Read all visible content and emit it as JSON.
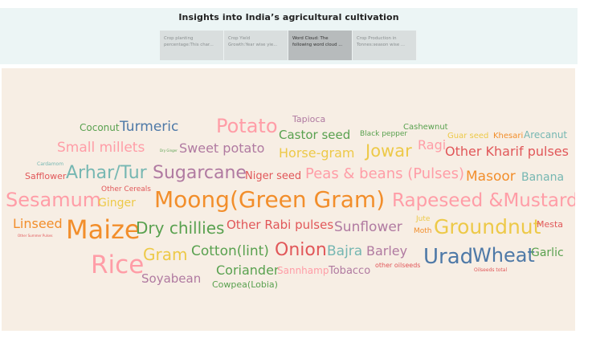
{
  "title": "Insights into India’s agricultural cultivation",
  "tabs": [
    {
      "line1": "Crop planting",
      "line2": "percentage:This char...",
      "active": false
    },
    {
      "line1": "Crop Yield",
      "line2": "Growth:Year wise yie...",
      "active": false
    },
    {
      "line1": "Word Cloud: The",
      "line2": "following word cloud ...",
      "active": true
    },
    {
      "line1": "Crop Production in",
      "line2": "Tonnes:season wise ...",
      "active": false
    }
  ],
  "words": [
    {
      "text": "Tapioca",
      "size": 11,
      "color": "#b07aa1"
    },
    {
      "text": "Coconut",
      "size": 12,
      "color": "#59a14f"
    },
    {
      "text": "Turmeric",
      "size": 17,
      "color": "#4e79a7"
    },
    {
      "text": "Potato",
      "size": 24,
      "color": "#ff9da7"
    },
    {
      "text": "Castor seed",
      "size": 15,
      "color": "#59a14f"
    },
    {
      "text": "Black pepper",
      "size": 9,
      "color": "#59a14f"
    },
    {
      "text": "Cashewnut",
      "size": 10,
      "color": "#59a14f"
    },
    {
      "text": "Guar seed",
      "size": 10,
      "color": "#edc948"
    },
    {
      "text": "Khesari",
      "size": 10,
      "color": "#f28e2b"
    },
    {
      "text": "Arecanut",
      "size": 12,
      "color": "#76b7b2"
    },
    {
      "text": "Small millets",
      "size": 17,
      "color": "#ff9da7"
    },
    {
      "text": "Dry Ginger",
      "size": 4,
      "color": "#59a14f"
    },
    {
      "text": "Sweet potato",
      "size": 16,
      "color": "#b07aa1"
    },
    {
      "text": "Horse-gram",
      "size": 16,
      "color": "#edc948"
    },
    {
      "text": "Jowar",
      "size": 21,
      "color": "#edc948"
    },
    {
      "text": "Ragi",
      "size": 16,
      "color": "#ff9da7"
    },
    {
      "text": "Other Kharif pulses",
      "size": 16,
      "color": "#e15759"
    },
    {
      "text": "Cardamom",
      "size": 6,
      "color": "#76b7b2"
    },
    {
      "text": "Safflower",
      "size": 11,
      "color": "#e15759"
    },
    {
      "text": "Arhar/Tur",
      "size": 22,
      "color": "#76b7b2"
    },
    {
      "text": "Sugarcane",
      "size": 22,
      "color": "#b07aa1"
    },
    {
      "text": "Niger seed",
      "size": 13,
      "color": "#e15759"
    },
    {
      "text": "Peas & beans (Pulses)",
      "size": 18,
      "color": "#ff9da7"
    },
    {
      "text": "Masoor",
      "size": 17,
      "color": "#f28e2b"
    },
    {
      "text": "Banana",
      "size": 14,
      "color": "#76b7b2"
    },
    {
      "text": "Other Cereals",
      "size": 9,
      "color": "#e15759"
    },
    {
      "text": "Sesamum",
      "size": 24,
      "color": "#ff9da7"
    },
    {
      "text": "Ginger",
      "size": 14,
      "color": "#edc948"
    },
    {
      "text": "Moong(Green Gram)",
      "size": 28,
      "color": "#f28e2b"
    },
    {
      "text": "Rapeseed &Mustard",
      "size": 23,
      "color": "#ff9da7"
    },
    {
      "text": "Linseed",
      "size": 16,
      "color": "#f28e2b"
    },
    {
      "text": "Maize",
      "size": 32,
      "color": "#f28e2b"
    },
    {
      "text": "Dry chillies",
      "size": 20,
      "color": "#59a14f"
    },
    {
      "text": "Other Rabi pulses",
      "size": 15,
      "color": "#e15759"
    },
    {
      "text": "Sunflower",
      "size": 17,
      "color": "#b07aa1"
    },
    {
      "text": "Jute",
      "size": 9,
      "color": "#edc948"
    },
    {
      "text": "Moth",
      "size": 9,
      "color": "#f28e2b"
    },
    {
      "text": "Groundnut",
      "size": 25,
      "color": "#edc948"
    },
    {
      "text": "Mesta",
      "size": 11,
      "color": "#e15759"
    },
    {
      "text": "Other Summer Pulses",
      "size": 4,
      "color": "#e15759"
    },
    {
      "text": "Rice",
      "size": 31,
      "color": "#ff9da7"
    },
    {
      "text": "Gram",
      "size": 20,
      "color": "#edc948"
    },
    {
      "text": "Cotton(lint)",
      "size": 17,
      "color": "#59a14f"
    },
    {
      "text": "Onion",
      "size": 22,
      "color": "#e15759"
    },
    {
      "text": "Bajra",
      "size": 17,
      "color": "#76b7b2"
    },
    {
      "text": "Barley",
      "size": 16,
      "color": "#b07aa1"
    },
    {
      "text": "Urad",
      "size": 26,
      "color": "#4e79a7"
    },
    {
      "text": "Wheat",
      "size": 24,
      "color": "#4e79a7"
    },
    {
      "text": "Garlic",
      "size": 14,
      "color": "#59a14f"
    },
    {
      "text": "Coriander",
      "size": 16,
      "color": "#59a14f"
    },
    {
      "text": "Sannhamp",
      "size": 12,
      "color": "#ff9da7"
    },
    {
      "text": "Tobacco",
      "size": 13,
      "color": "#b07aa1"
    },
    {
      "text": "other oilseeds",
      "size": 8,
      "color": "#e15759"
    },
    {
      "text": "Oilseeds total",
      "size": 6,
      "color": "#e15759"
    },
    {
      "text": "Soyabean",
      "size": 15,
      "color": "#b07aa1"
    },
    {
      "text": "Cowpea(Lobia)",
      "size": 11,
      "color": "#59a14f"
    }
  ]
}
